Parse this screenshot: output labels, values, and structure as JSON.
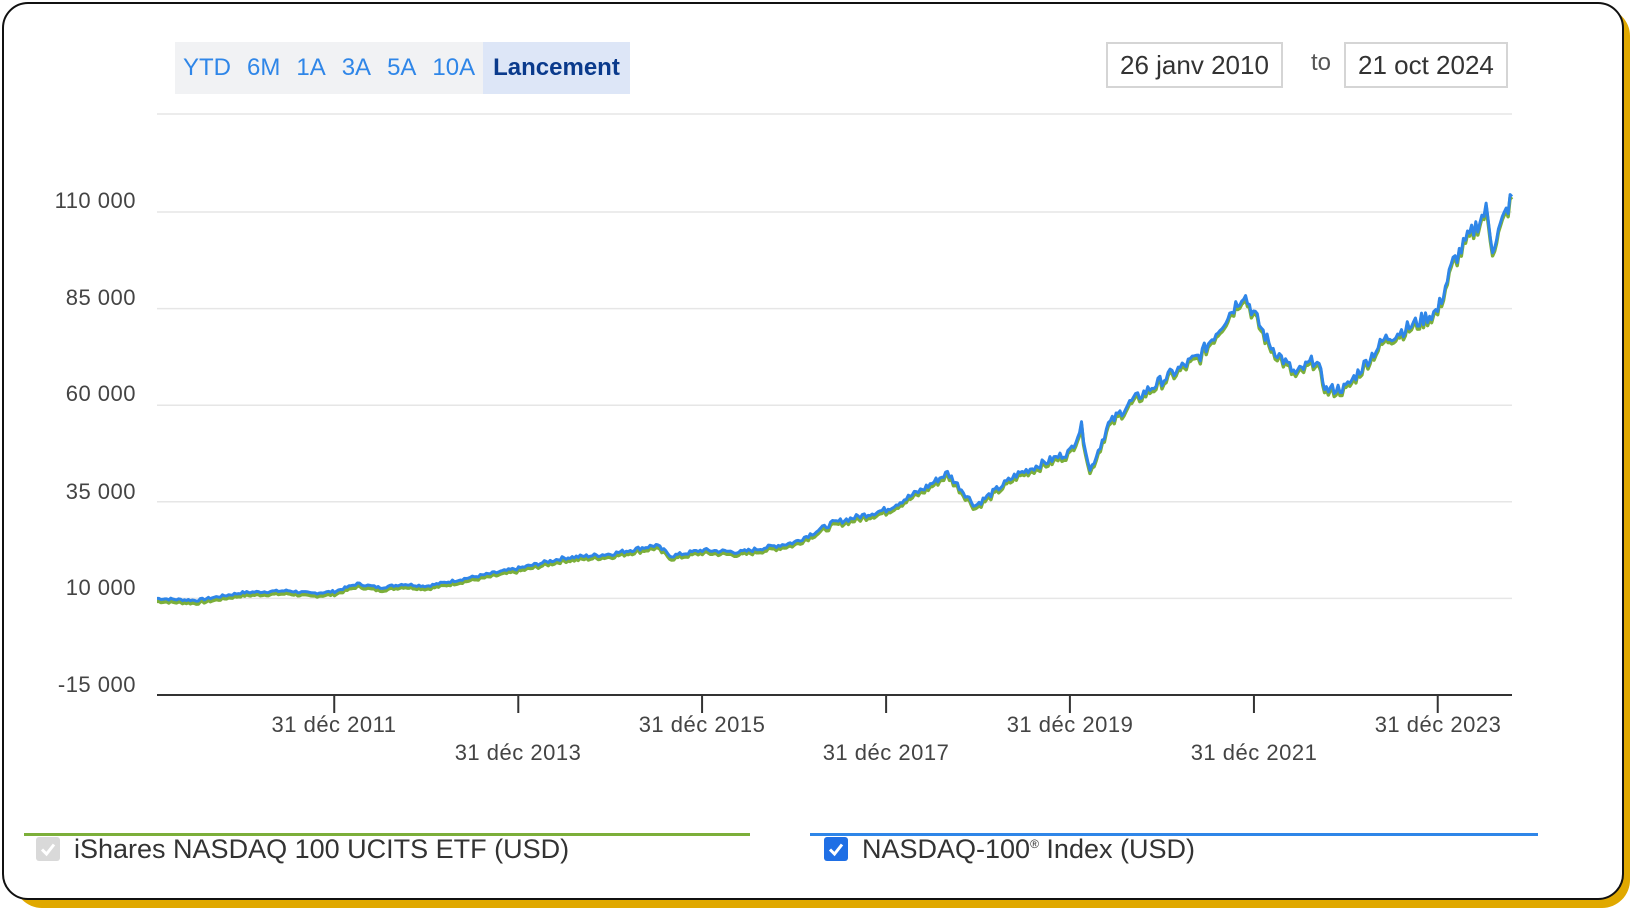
{
  "range_buttons": [
    {
      "label": "YTD",
      "active": false
    },
    {
      "label": "6M",
      "active": false
    },
    {
      "label": "1A",
      "active": false
    },
    {
      "label": "3A",
      "active": false
    },
    {
      "label": "5A",
      "active": false
    },
    {
      "label": "10A",
      "active": false
    },
    {
      "label": "Lancement",
      "active": true
    }
  ],
  "date_range": {
    "from": "26 janv 2010",
    "to_label": "to",
    "to": "21 oct 2024"
  },
  "legend": {
    "etf_label": "iShares NASDAQ 100 UCITS ETF (USD)",
    "index_label_main": "NASDAQ-100",
    "index_label_sup": "®",
    "index_label_rest": " Index (USD)",
    "etf_checked": true,
    "index_checked": true
  },
  "colors": {
    "etf_line": "#7CAF3A",
    "index_line": "#2F86E8",
    "frame_accent": "#E0A800"
  },
  "chart_data": {
    "type": "line",
    "ytick_labels": [
      "110 000",
      "85 000",
      "60 000",
      "35 000",
      "10 000",
      "-15 000"
    ],
    "yticks": [
      110000,
      85000,
      60000,
      35000,
      10000,
      -15000
    ],
    "ylim": [
      -15000,
      135000
    ],
    "xlim": [
      "2010-01-26",
      "2024-10-21"
    ],
    "xtick_labels_row1": [
      "31 déc 2011",
      "31 déc 2015",
      "31 déc 2019",
      "31 déc 2023"
    ],
    "xtick_labels_row2": [
      "31 déc 2013",
      "31 déc 2017",
      "31 déc 2021"
    ],
    "grid": true,
    "x": [
      "2010-01-26",
      "2010-07-01",
      "2011-01-01",
      "2011-07-01",
      "2011-10-01",
      "2012-01-01",
      "2012-04-01",
      "2012-07-01",
      "2012-10-01",
      "2013-01-01",
      "2013-07-01",
      "2014-01-01",
      "2014-07-01",
      "2015-01-01",
      "2015-07-01",
      "2015-09-01",
      "2016-01-01",
      "2016-06-01",
      "2016-12-31",
      "2017-06-01",
      "2017-12-31",
      "2018-06-01",
      "2018-09-01",
      "2018-12-20",
      "2019-06-01",
      "2019-12-31",
      "2020-02-15",
      "2020-03-20",
      "2020-06-01",
      "2020-09-01",
      "2020-12-31",
      "2021-06-01",
      "2021-11-20",
      "2022-03-01",
      "2022-06-15",
      "2022-09-01",
      "2022-10-15",
      "2022-12-31",
      "2023-06-01",
      "2023-09-01",
      "2023-12-31",
      "2024-03-01",
      "2024-07-10",
      "2024-08-05",
      "2024-10-21"
    ],
    "series": [
      {
        "name": "iShares NASDAQ 100 UCITS ETF (USD)",
        "values": [
          10000,
          9500,
          11500,
          12000,
          11300,
          11800,
          13800,
          12800,
          13700,
          13200,
          15500,
          17800,
          20500,
          21500,
          23800,
          21000,
          22500,
          22000,
          24500,
          29500,
          33000,
          38500,
          42500,
          34000,
          42000,
          48000,
          54500,
          43000,
          55000,
          61000,
          66500,
          73000,
          89000,
          76000,
          68000,
          72000,
          64000,
          64500,
          77000,
          80000,
          84500,
          97000,
          110500,
          101000,
          114000
        ]
      },
      {
        "name": "NASDAQ-100® Index (USD)",
        "values": [
          10000,
          9500,
          11500,
          12000,
          11300,
          11800,
          13800,
          12800,
          13700,
          13200,
          15500,
          17800,
          20500,
          21500,
          23800,
          21000,
          22500,
          22000,
          24500,
          29500,
          33000,
          38500,
          42500,
          34000,
          42000,
          48000,
          54500,
          43000,
          55000,
          61000,
          66500,
          73000,
          89000,
          76000,
          68000,
          72000,
          64000,
          64500,
          77000,
          80000,
          84500,
          97000,
          110500,
          101000,
          114000
        ]
      }
    ]
  }
}
